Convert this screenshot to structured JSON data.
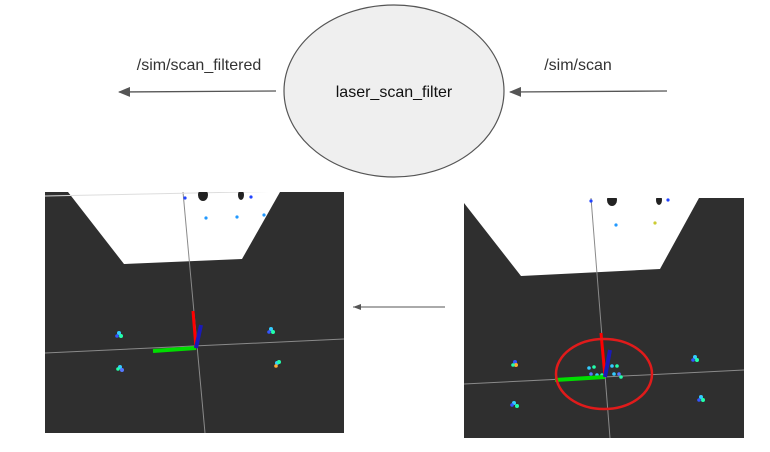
{
  "node": {
    "label": "laser_scan_filter",
    "fill": "#efefef",
    "stroke": "#555555"
  },
  "topics": {
    "output": "/sim/scan_filtered",
    "input": "/sim/scan"
  },
  "colors": {
    "arrow": "#555555",
    "viewport_bg": "#2f2f2f",
    "wall": "#ffffff",
    "axis_x": "#ff0000",
    "axis_y": "#00dd00",
    "axis_z": "#1a1ab8",
    "highlight": "#e01b1b"
  }
}
